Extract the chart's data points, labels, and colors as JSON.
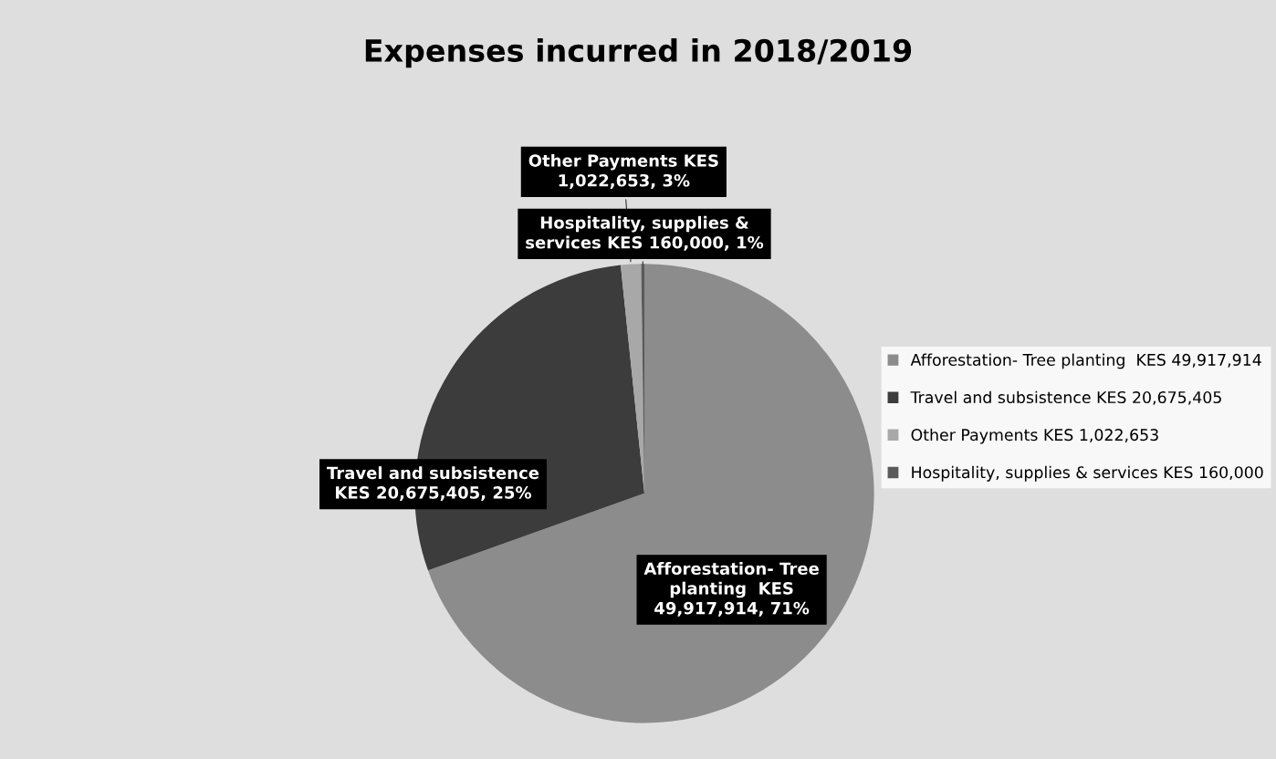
{
  "chart_data": {
    "type": "pie",
    "title": "Expenses incurred in 2018/2019",
    "categories": [
      "Afforestation- Tree planting  KES 49,917,914",
      "Travel and subsistence KES 20,675,405",
      "Other Payments KES 1,022,653",
      "Hospitality, supplies & services KES 160,000"
    ],
    "values": [
      49917914,
      20675405,
      1022653,
      160000
    ],
    "colors": [
      "#8c8c8c",
      "#3c3c3c",
      "#a8a8a8",
      "#5a5a5a"
    ],
    "value_labels": [
      "Afforestation- Tree planting  KES 49,917,914, 71%",
      "Travel and subsistence KES 20,675,405, 25%",
      "Other Payments KES 1,022,653, 3%",
      "Hospitality, supplies & services KES 160,000, 1%"
    ],
    "legend": "right"
  }
}
